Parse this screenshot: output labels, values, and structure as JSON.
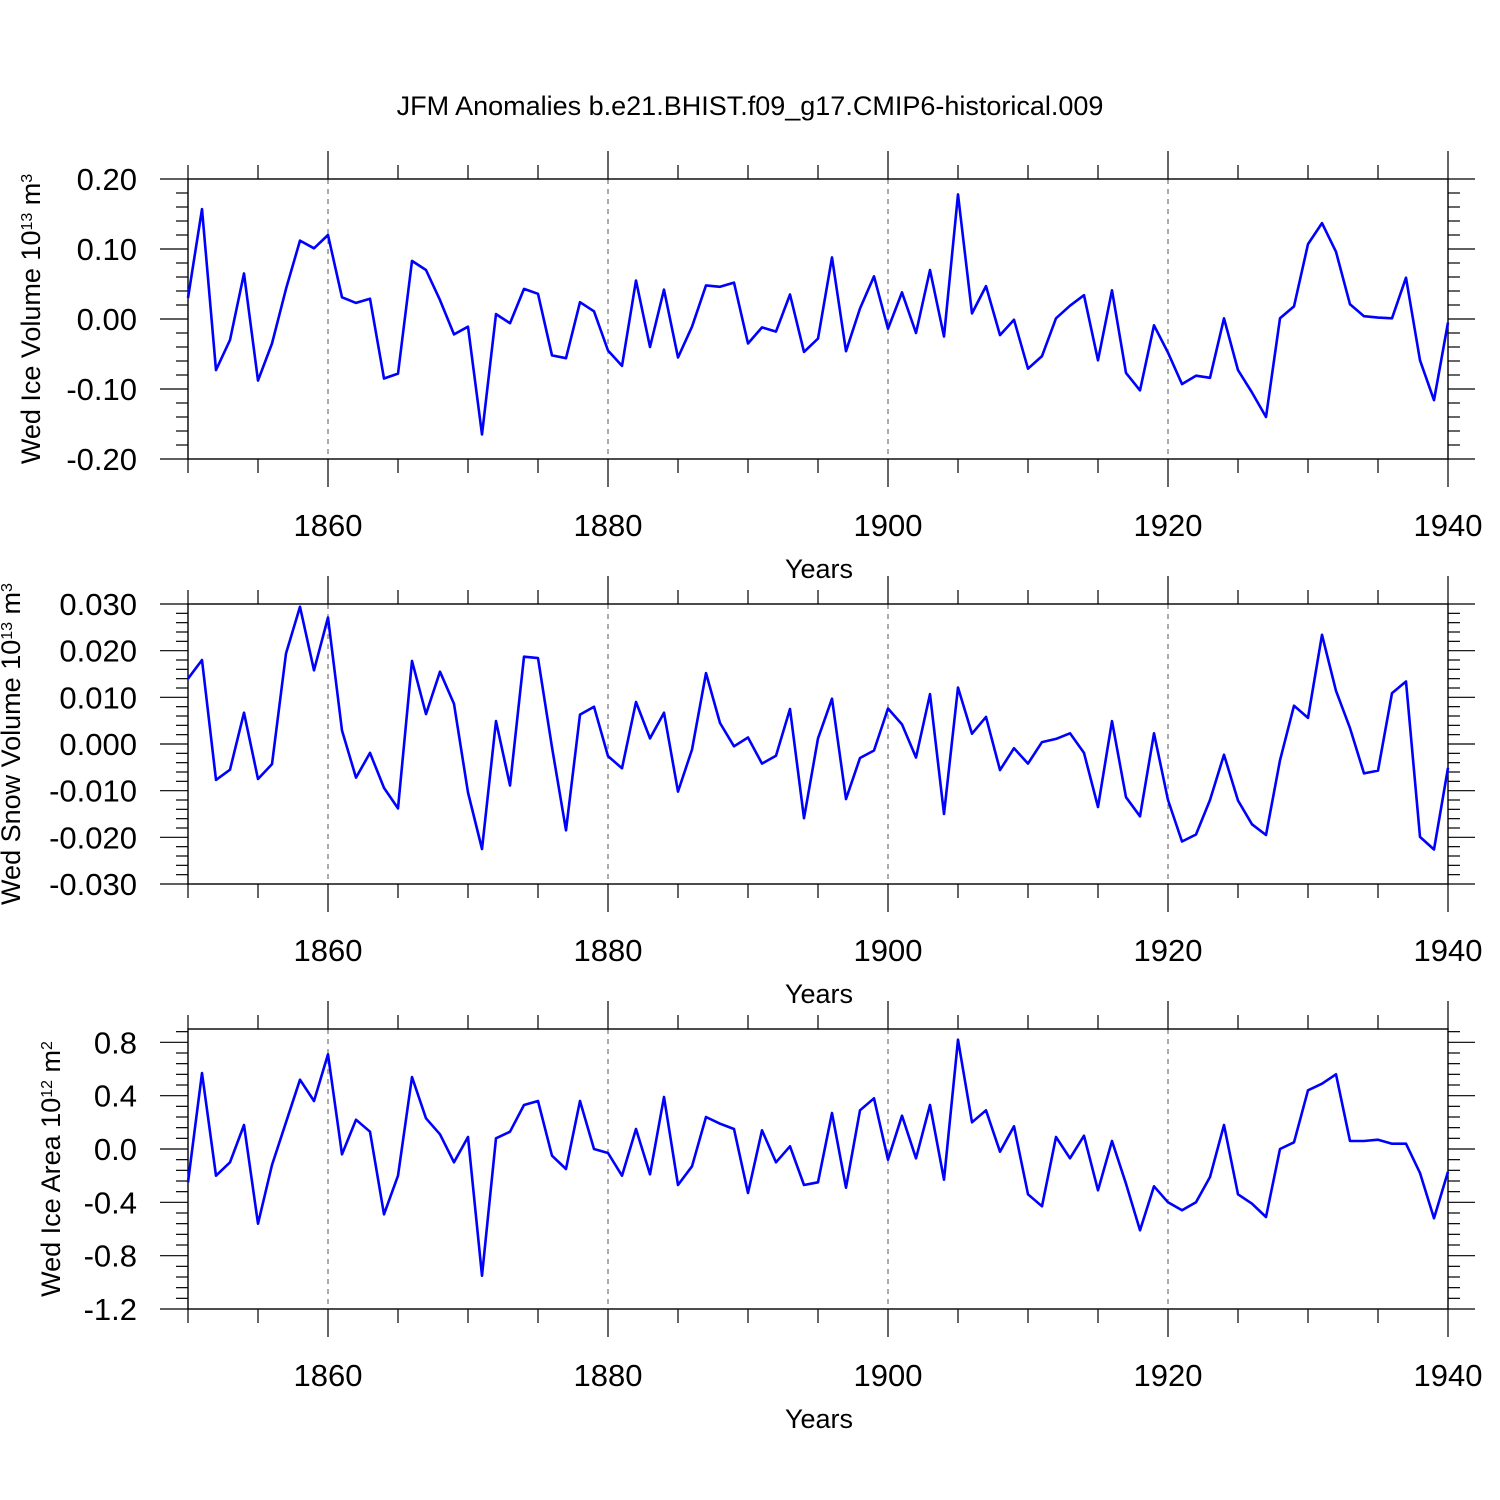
{
  "title": "JFM Anomalies b.e21.BHIST.f09_g17.CMIP6-historical.009",
  "colors": {
    "line": "#0000ff",
    "grid": "#555555",
    "axis": "#000000"
  },
  "chart_data": [
    {
      "type": "line",
      "xlabel": "Years",
      "ylabel": {
        "base": "Wed Ice Volume 10",
        "exp": "13",
        "unit": " m",
        "unit_exp": "3"
      },
      "xlim": [
        1850,
        1940
      ],
      "ylim": [
        -0.2,
        0.2
      ],
      "xticks": [
        1860,
        1880,
        1900,
        1920,
        1940
      ],
      "yticks": [
        -0.2,
        -0.1,
        0.0,
        0.1,
        0.2
      ],
      "ytick_labels": [
        "-0.20",
        "-0.10",
        "0.00",
        "0.10",
        "0.20"
      ],
      "grid": "vertical dashed at major x ticks",
      "series": [
        {
          "name": "Wed Ice Volume",
          "x_start": 1850,
          "values": [
            0.03,
            0.157,
            -0.073,
            -0.03,
            0.065,
            -0.088,
            -0.035,
            0.043,
            0.112,
            0.101,
            0.12,
            0.031,
            0.023,
            0.029,
            -0.085,
            -0.078,
            0.083,
            0.07,
            0.027,
            -0.022,
            -0.011,
            -0.165,
            0.007,
            -0.006,
            0.043,
            0.036,
            -0.052,
            -0.056,
            0.024,
            0.011,
            -0.045,
            -0.067,
            0.055,
            -0.04,
            0.042,
            -0.055,
            -0.011,
            0.048,
            0.046,
            0.052,
            -0.035,
            -0.012,
            -0.018,
            0.035,
            -0.047,
            -0.028,
            0.088,
            -0.046,
            0.015,
            0.061,
            -0.014,
            0.038,
            -0.02,
            0.07,
            -0.025,
            0.178,
            0.008,
            0.047,
            -0.023,
            -0.001,
            -0.071,
            -0.053,
            0.001,
            0.019,
            0.034,
            -0.059,
            0.041,
            -0.077,
            -0.102,
            -0.009,
            -0.048,
            -0.093,
            -0.081,
            -0.084,
            0.001,
            -0.073,
            -0.105,
            -0.14,
            0.001,
            0.018,
            0.107,
            0.137,
            0.096,
            0.021,
            0.004,
            0.002,
            0.001,
            0.059,
            -0.059,
            -0.116,
            -0.005
          ]
        }
      ]
    },
    {
      "type": "line",
      "xlabel": "Years",
      "ylabel": {
        "base": "Wed Snow Volume 10",
        "exp": "13",
        "unit": " m",
        "unit_exp": "3"
      },
      "xlim": [
        1850,
        1940
      ],
      "ylim": [
        -0.03,
        0.03
      ],
      "xticks": [
        1860,
        1880,
        1900,
        1920,
        1940
      ],
      "yticks": [
        -0.03,
        -0.02,
        -0.01,
        0.0,
        0.01,
        0.02,
        0.03
      ],
      "ytick_labels": [
        "-0.030",
        "-0.020",
        "-0.010",
        "0.000",
        "0.010",
        "0.020",
        "0.030"
      ],
      "grid": "vertical dashed at major x ticks",
      "series": [
        {
          "name": "Wed Snow Volume",
          "x_start": 1850,
          "values": [
            0.014,
            0.018,
            -0.0077,
            -0.0055,
            0.0067,
            -0.0075,
            -0.0043,
            0.0194,
            0.0294,
            0.0158,
            0.0271,
            0.0029,
            -0.0072,
            -0.0019,
            -0.0094,
            -0.0138,
            0.0178,
            0.0064,
            0.0155,
            0.0086,
            -0.0104,
            -0.0225,
            0.0049,
            -0.0089,
            0.0187,
            0.0184,
            -0.0007,
            -0.0185,
            0.0063,
            0.008,
            -0.0026,
            -0.0052,
            0.009,
            0.0012,
            0.0067,
            -0.0102,
            -0.0012,
            0.0152,
            0.0045,
            -0.0005,
            0.0014,
            -0.0042,
            -0.0025,
            0.0075,
            -0.0159,
            0.0012,
            0.0097,
            -0.0118,
            -0.003,
            -0.0014,
            0.0076,
            0.0042,
            -0.0029,
            0.0107,
            -0.015,
            0.0121,
            0.0022,
            0.0058,
            -0.0056,
            -0.0009,
            -0.0042,
            0.0004,
            0.0011,
            0.0023,
            -0.0019,
            -0.0135,
            0.0049,
            -0.0114,
            -0.0155,
            0.0023,
            -0.012,
            -0.0209,
            -0.0194,
            -0.012,
            -0.0023,
            -0.0121,
            -0.0172,
            -0.0195,
            -0.0035,
            0.0082,
            0.0056,
            0.0234,
            0.0114,
            0.0034,
            -0.0063,
            -0.0057,
            0.0109,
            0.0134,
            -0.0199,
            -0.0226,
            -0.0051
          ]
        }
      ]
    },
    {
      "type": "line",
      "xlabel": "Years",
      "ylabel": {
        "base": "Wed Ice Area 10",
        "exp": "12",
        "unit": " m",
        "unit_exp": "2"
      },
      "xlim": [
        1850,
        1940
      ],
      "ylim": [
        -1.2,
        0.9
      ],
      "xticks": [
        1860,
        1880,
        1900,
        1920,
        1940
      ],
      "yticks": [
        -1.2,
        -0.8,
        -0.4,
        0.0,
        0.4,
        0.8
      ],
      "ytick_labels": [
        "-1.2",
        "-0.8",
        "-0.4",
        "0.0",
        "0.4",
        "0.8"
      ],
      "grid": "vertical dashed at major x ticks",
      "series": [
        {
          "name": "Wed Ice Area",
          "x_start": 1850,
          "values": [
            -0.25,
            0.57,
            -0.2,
            -0.1,
            0.18,
            -0.56,
            -0.12,
            0.2,
            0.52,
            0.36,
            0.71,
            -0.04,
            0.22,
            0.13,
            -0.49,
            -0.2,
            0.54,
            0.23,
            0.11,
            -0.1,
            0.09,
            -0.95,
            0.08,
            0.13,
            0.33,
            0.36,
            -0.05,
            -0.15,
            0.36,
            0.0,
            -0.03,
            -0.2,
            0.15,
            -0.19,
            0.39,
            -0.27,
            -0.13,
            0.24,
            0.19,
            0.15,
            -0.33,
            0.14,
            -0.1,
            0.02,
            -0.27,
            -0.25,
            0.27,
            -0.29,
            0.29,
            0.38,
            -0.08,
            0.25,
            -0.07,
            0.33,
            -0.23,
            0.82,
            0.2,
            0.29,
            -0.02,
            0.17,
            -0.34,
            -0.43,
            0.09,
            -0.07,
            0.1,
            -0.31,
            0.06,
            -0.26,
            -0.61,
            -0.28,
            -0.4,
            -0.46,
            -0.4,
            -0.21,
            0.18,
            -0.34,
            -0.41,
            -0.51,
            0.0,
            0.05,
            0.44,
            0.49,
            0.56,
            0.06,
            0.06,
            0.07,
            0.04,
            0.04,
            -0.18,
            -0.52,
            -0.17
          ]
        }
      ]
    }
  ]
}
